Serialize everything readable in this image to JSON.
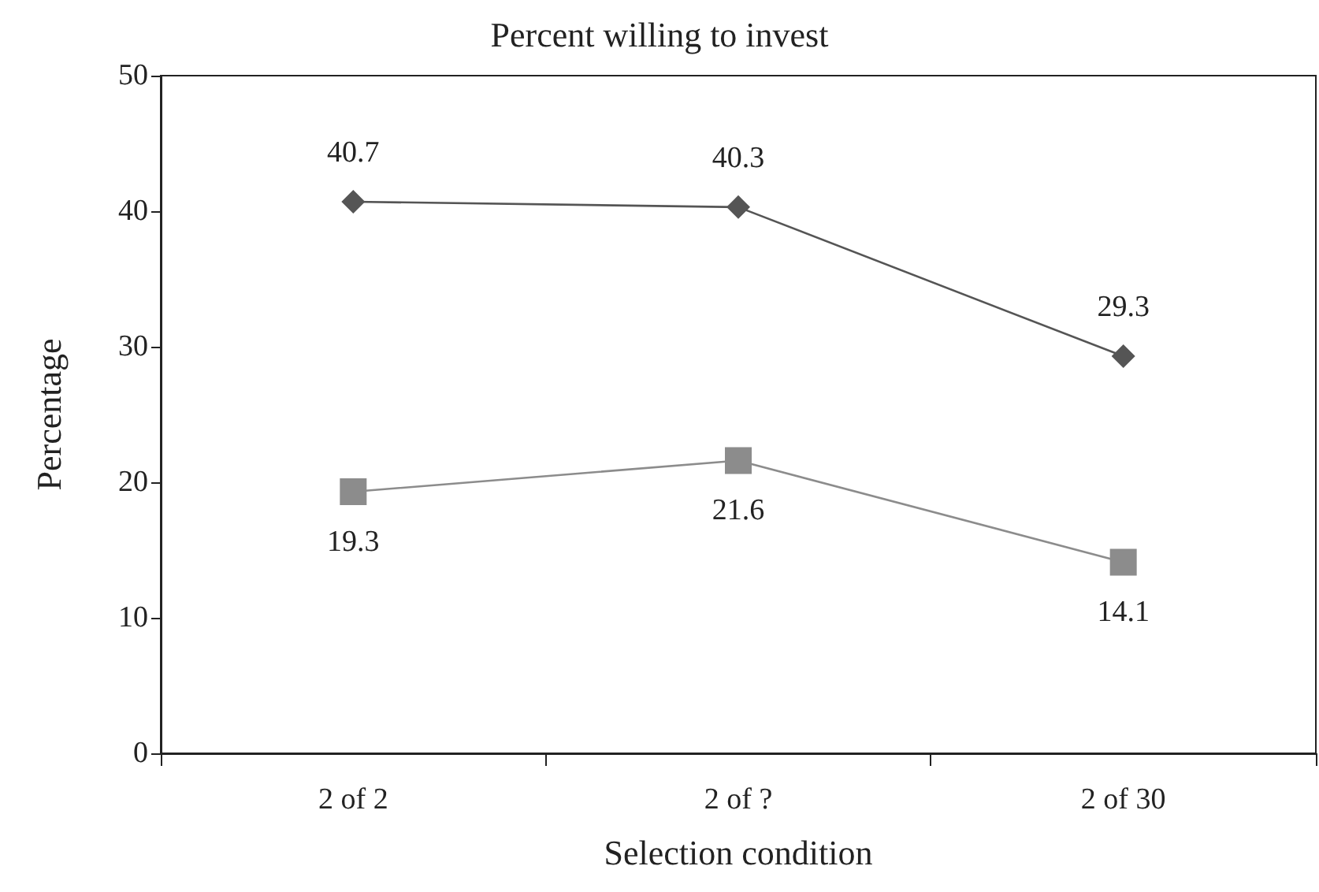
{
  "chart_data": {
    "type": "line",
    "title": "Percent willing to invest",
    "xlabel": "Selection condition",
    "ylabel": "Percentage",
    "categories": [
      "2 of 2",
      "2 of ?",
      "2 of 30"
    ],
    "series": [
      {
        "color": "#555555",
        "marker": "diamond",
        "values": [
          40.7,
          40.3,
          29.3
        ]
      },
      {
        "color": "#8c8c8c",
        "marker": "square",
        "values": [
          19.3,
          21.6,
          14.1
        ]
      }
    ],
    "ylim": [
      0,
      50
    ],
    "yticks": [
      0,
      10,
      20,
      30,
      40,
      50
    ],
    "grid": false,
    "data_labels": true,
    "line_style": "solid"
  }
}
